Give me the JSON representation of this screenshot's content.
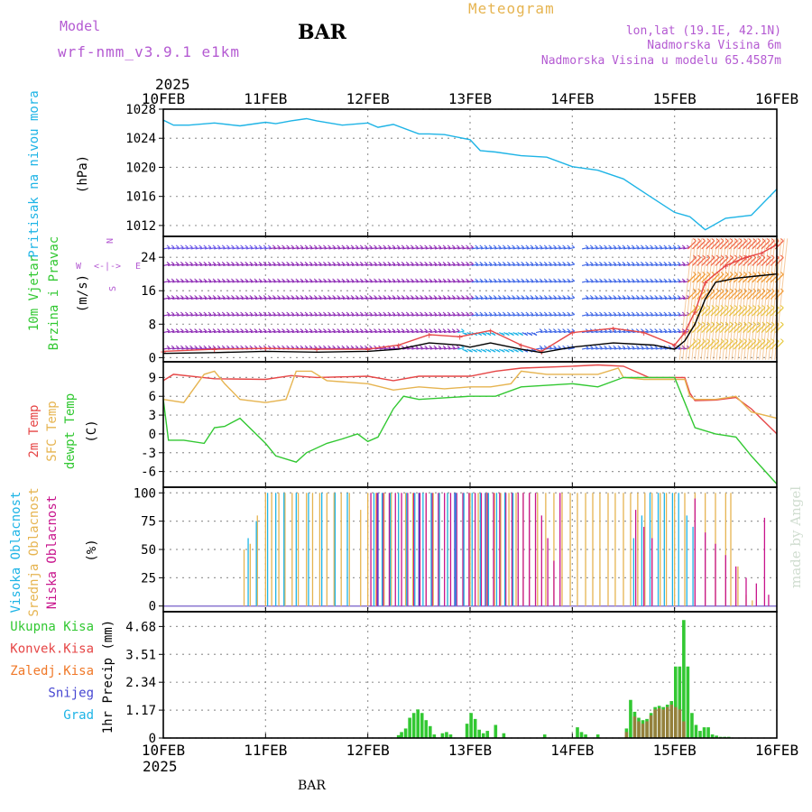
{
  "header": {
    "model_label": "Model",
    "model_name": "wrf-nmm_v3.9.1 e1km",
    "station": "BAR",
    "meteogram": "Meteogram",
    "location": "lon,lat (19.1E, 42.1N)",
    "elevation": "Nadmorska Visina 6m",
    "model_elevation": "Nadmorska Visina u modelu 65.4587m",
    "footer_station": "BAR",
    "credit": "made by Angel"
  },
  "colors": {
    "purple": "#b45ad2",
    "gold": "#e6b450",
    "cyan": "#1eb4e6",
    "green": "#32c832",
    "red": "#e64646",
    "orange": "#f07828",
    "blue": "#4646d2",
    "magenta": "#c8148c",
    "black": "#000000",
    "grid": "#999999"
  },
  "chart_data": [
    {
      "id": "pressure",
      "type": "line",
      "ylabel_lines": [
        "Pritisak na nivou mora",
        "(hPa)"
      ],
      "ylim": [
        1010.5,
        1028
      ],
      "yticks": [
        1012,
        1016,
        1020,
        1024,
        1028
      ],
      "x_top_year": "2025",
      "x_labels": [
        "10FEB",
        "11FEB",
        "12FEB",
        "13FEB",
        "14FEB",
        "15FEB",
        "16FEB"
      ],
      "series": [
        {
          "color": "cyan",
          "x": [
            0,
            0.1,
            0.25,
            0.5,
            0.75,
            1,
            1.1,
            1.25,
            1.4,
            1.5,
            1.75,
            2,
            2.1,
            2.25,
            2.5,
            2.6,
            2.75,
            3,
            3.1,
            3.25,
            3.5,
            3.75,
            4,
            4.25,
            4.5,
            4.75,
            5,
            5.15,
            5.3,
            5.5,
            5.75,
            6
          ],
          "values": [
            1026.5,
            1025.8,
            1025.8,
            1026.1,
            1025.7,
            1026.2,
            1026.0,
            1026.4,
            1026.7,
            1026.4,
            1025.8,
            1026.1,
            1025.5,
            1025.9,
            1024.6,
            1024.6,
            1024.5,
            1023.8,
            1022.3,
            1022.1,
            1021.6,
            1021.4,
            1020.1,
            1019.6,
            1018.4,
            1016.1,
            1013.8,
            1013.2,
            1011.4,
            1013.0,
            1013.4,
            1017.0
          ]
        }
      ]
    },
    {
      "id": "wind",
      "type": "line",
      "ylabel_lines": [
        "10m Vjetar",
        "Brzina i Pravac",
        "(m/s)"
      ],
      "compass": {
        "n": "N",
        "s": "S",
        "w": "W",
        "e": "E"
      },
      "ylim": [
        -1,
        29
      ],
      "yticks": [
        0,
        8,
        16,
        24
      ],
      "speed_levels": [
        2,
        6,
        10,
        14,
        18,
        22,
        26
      ],
      "series": [
        {
          "name": "speed",
          "color": "black",
          "x": [
            0,
            0.5,
            1,
            1.5,
            2,
            2.3,
            2.6,
            2.9,
            3,
            3.2,
            3.5,
            3.7,
            4,
            4.4,
            4.8,
            5,
            5.1,
            5.2,
            5.3,
            5.4,
            5.6,
            5.8,
            6
          ],
          "values": [
            1.0,
            1.2,
            1.5,
            1.3,
            1.5,
            2.0,
            3.5,
            3.0,
            2.5,
            3.5,
            2.0,
            1.2,
            2.5,
            3.5,
            3.0,
            2.0,
            4.0,
            8.0,
            14.0,
            18.0,
            19.0,
            19.5,
            20.0
          ]
        },
        {
          "name": "gust",
          "color": "red",
          "x": [
            0,
            0.5,
            1,
            1.5,
            2,
            2.3,
            2.6,
            2.9,
            3.2,
            3.5,
            3.7,
            4,
            4.4,
            4.7,
            5,
            5.1,
            5.2,
            5.3,
            5.5,
            5.7,
            5.85,
            6
          ],
          "values": [
            1.5,
            2.0,
            2.2,
            2.0,
            2.0,
            3.0,
            5.5,
            5.0,
            6.5,
            3.0,
            1.5,
            6.0,
            7.0,
            6.0,
            3.0,
            6.0,
            11.0,
            18.0,
            22.0,
            24.0,
            25.0,
            27.0
          ]
        }
      ]
    },
    {
      "id": "temperature",
      "type": "line",
      "ylabel_lines": [
        "2m Temp",
        "SFC Temp",
        "dewpt Temp",
        "(C)"
      ],
      "ylim": [
        -8.5,
        11.5
      ],
      "yticks": [
        -6,
        -3,
        0,
        3,
        6,
        9
      ],
      "series": [
        {
          "name": "2m Temp",
          "color": "red",
          "x": [
            0,
            0.1,
            0.5,
            1,
            1.25,
            1.5,
            2,
            2.25,
            2.5,
            3,
            3.25,
            3.5,
            4,
            4.25,
            4.5,
            4.75,
            5,
            5.1,
            5.15,
            5.2,
            5.4,
            5.6,
            5.75,
            6
          ],
          "values": [
            8.5,
            9.5,
            8.8,
            8.7,
            9.3,
            9.0,
            9.2,
            8.5,
            9.2,
            9.2,
            10.0,
            10.5,
            10.8,
            11.0,
            10.8,
            9.0,
            9.0,
            9.0,
            6.5,
            5.3,
            5.4,
            5.8,
            4.0,
            0.0
          ]
        },
        {
          "name": "SFC Temp",
          "color": "gold",
          "x": [
            0,
            0.2,
            0.4,
            0.5,
            0.6,
            0.75,
            1,
            1.2,
            1.3,
            1.45,
            1.6,
            2,
            2.25,
            2.5,
            2.75,
            3,
            3.2,
            3.4,
            3.5,
            3.75,
            4,
            4.25,
            4.45,
            4.5,
            4.7,
            5,
            5.1,
            5.15,
            5.2,
            5.4,
            5.6,
            5.75,
            6
          ],
          "values": [
            5.5,
            5.0,
            9.5,
            10.0,
            8.0,
            5.5,
            5.0,
            5.5,
            10.0,
            10.0,
            8.5,
            8.0,
            7.0,
            7.5,
            7.2,
            7.5,
            7.5,
            8.0,
            10.0,
            9.5,
            9.5,
            9.5,
            10.5,
            9.0,
            8.7,
            8.7,
            8.7,
            6.0,
            5.5,
            5.5,
            6.0,
            3.5,
            2.5
          ]
        },
        {
          "name": "dewpt Temp",
          "color": "green",
          "x": [
            0,
            0.05,
            0.2,
            0.4,
            0.5,
            0.6,
            0.75,
            1,
            1.1,
            1.3,
            1.4,
            1.6,
            1.75,
            1.9,
            2,
            2.1,
            2.25,
            2.35,
            2.5,
            3,
            3.25,
            3.5,
            4,
            4.25,
            4.5,
            4.75,
            5,
            5.1,
            5.2,
            5.4,
            5.6,
            5.75,
            6
          ],
          "values": [
            5.5,
            -1.0,
            -1.0,
            -1.5,
            1.0,
            1.2,
            2.5,
            -1.5,
            -3.5,
            -4.5,
            -3.0,
            -1.5,
            -0.8,
            0.0,
            -1.2,
            -0.5,
            4.0,
            6.0,
            5.5,
            6.0,
            6.0,
            7.5,
            8.0,
            7.5,
            9.0,
            9.0,
            9.0,
            5.0,
            1.0,
            0.0,
            -0.5,
            -3.5,
            -8.0
          ]
        }
      ]
    },
    {
      "id": "cloud",
      "type": "bar",
      "ylabel_lines": [
        "Visoka Oblacnost",
        "Srednja Oblacnost",
        "Niska Oblacnost",
        "(%)"
      ],
      "ylim": [
        -5,
        105
      ],
      "yticks": [
        0,
        25,
        50,
        75,
        100
      ],
      "series": [
        {
          "name": "Srednja Oblacnost",
          "color": "gold",
          "x": [
            0.79,
            0.85,
            0.92,
            1.0,
            1.06,
            1.13,
            1.19,
            1.26,
            1.32,
            1.4,
            1.46,
            1.53,
            1.6,
            1.67,
            1.74,
            1.82,
            1.93,
            2.0,
            2.08,
            2.16,
            2.23,
            2.3,
            2.37,
            2.44,
            2.5,
            2.57,
            2.64,
            2.7,
            2.78,
            2.86,
            2.93,
            3.0,
            3.08,
            3.16,
            3.24,
            3.3,
            3.38,
            3.45,
            3.52,
            3.58,
            3.66,
            3.74,
            3.82,
            3.9,
            3.98,
            4.05,
            4.13,
            4.2,
            4.27,
            4.35,
            4.42,
            4.5,
            4.57,
            4.64,
            4.71,
            4.78,
            4.86,
            4.92,
            5.0,
            5.1,
            5.2,
            5.3,
            5.4,
            5.5,
            5.55,
            5.62,
            5.7,
            5.76
          ],
          "values": [
            50,
            55,
            80,
            100,
            100,
            100,
            100,
            100,
            100,
            100,
            100,
            100,
            100,
            100,
            100,
            100,
            85,
            100,
            100,
            100,
            100,
            100,
            100,
            100,
            100,
            100,
            100,
            100,
            100,
            100,
            100,
            100,
            100,
            100,
            100,
            100,
            100,
            100,
            100,
            100,
            100,
            100,
            100,
            100,
            100,
            100,
            100,
            100,
            100,
            100,
            100,
            100,
            100,
            100,
            100,
            100,
            100,
            100,
            100,
            100,
            100,
            100,
            100,
            100,
            100,
            35,
            10,
            5
          ]
        },
        {
          "name": "Niska Oblacnost",
          "color": "magenta",
          "x": [
            2.03,
            2.09,
            2.15,
            2.21,
            2.27,
            2.33,
            2.39,
            2.45,
            2.51,
            2.57,
            2.63,
            2.69,
            2.75,
            2.81,
            2.87,
            2.93,
            2.99,
            3.05,
            3.11,
            3.17,
            3.23,
            3.29,
            3.35,
            3.41,
            3.47,
            3.52,
            3.58,
            3.64,
            3.7,
            3.76,
            3.82,
            3.88,
            4.62,
            4.7,
            4.78,
            5.2,
            5.3,
            5.4,
            5.5,
            5.6,
            5.7,
            5.8,
            5.88,
            5.92
          ],
          "values": [
            100,
            100,
            100,
            100,
            100,
            100,
            100,
            100,
            100,
            100,
            100,
            100,
            100,
            100,
            100,
            100,
            100,
            100,
            100,
            100,
            100,
            100,
            100,
            100,
            100,
            100,
            100,
            100,
            80,
            60,
            40,
            100,
            85,
            70,
            60,
            95,
            65,
            55,
            45,
            35,
            25,
            20,
            78,
            10
          ]
        },
        {
          "name": "Visoka Oblacnost",
          "color": "cyan",
          "x": [
            0.83,
            0.91,
            1.02,
            1.1,
            1.18,
            1.3,
            1.42,
            1.55,
            1.68,
            1.8,
            2.06,
            2.14,
            2.22,
            2.3,
            2.38,
            2.46,
            2.54,
            2.62,
            2.7,
            2.78,
            2.86,
            2.94,
            3.02,
            3.1,
            3.18,
            3.26,
            3.34,
            3.42,
            4.6,
            4.68,
            4.76,
            4.84,
            4.9,
            4.98,
            5.04,
            5.12,
            5.18
          ],
          "values": [
            60,
            75,
            100,
            100,
            100,
            100,
            100,
            100,
            100,
            100,
            100,
            100,
            100,
            100,
            100,
            100,
            100,
            100,
            100,
            100,
            100,
            100,
            100,
            100,
            100,
            100,
            100,
            100,
            60,
            80,
            100,
            100,
            100,
            100,
            100,
            80,
            70
          ]
        },
        {
          "name": "Low-level",
          "color": "blue",
          "x": [
            2.1,
            2.5,
            2.85,
            3.15
          ],
          "values": [
            100,
            100,
            100,
            100
          ]
        }
      ]
    },
    {
      "id": "precip",
      "type": "bar",
      "ylabel_lines": [
        "1hr Precip (mm)"
      ],
      "legend_labels": [
        "Ukupna Kisa",
        "Konvek.Kisa",
        "Zaledj.Kisa",
        "Snijeg",
        "Grad"
      ],
      "legend_colors": [
        "green",
        "red",
        "orange",
        "blue",
        "cyan"
      ],
      "ylim": [
        0,
        5.3
      ],
      "yticks": [
        0,
        1.17,
        2.34,
        3.51,
        4.68
      ],
      "ytick_labels": [
        "0",
        "1.17",
        "2.34",
        "3.51",
        "4.68"
      ],
      "x_bottom_year": "2025",
      "series": [
        {
          "name": "Ukupna Kisa",
          "color": "green",
          "x": [
            2.3,
            2.33,
            2.37,
            2.41,
            2.45,
            2.49,
            2.53,
            2.57,
            2.61,
            2.65,
            2.73,
            2.77,
            2.81,
            2.97,
            3.01,
            3.05,
            3.09,
            3.13,
            3.17,
            3.25,
            3.33,
            3.73,
            4.05,
            4.09,
            4.13,
            4.25,
            4.53,
            4.57,
            4.61,
            4.65,
            4.69,
            4.73,
            4.77,
            4.81,
            4.85,
            4.89,
            4.93,
            4.97,
            5.01,
            5.05,
            5.09,
            5.13,
            5.17,
            5.21,
            5.25,
            5.29,
            5.33,
            5.37,
            5.41,
            5.45,
            5.49,
            5.53
          ],
          "values": [
            0.12,
            0.25,
            0.4,
            0.85,
            1.05,
            1.2,
            1.05,
            0.75,
            0.5,
            0.15,
            0.2,
            0.25,
            0.15,
            0.6,
            1.05,
            0.8,
            0.35,
            0.2,
            0.3,
            0.55,
            0.2,
            0.15,
            0.45,
            0.25,
            0.15,
            0.15,
            0.4,
            1.6,
            1.1,
            0.85,
            0.75,
            0.8,
            1.05,
            1.3,
            1.35,
            1.3,
            1.4,
            1.55,
            3.0,
            3.0,
            4.95,
            3.0,
            1.05,
            0.55,
            0.3,
            0.45,
            0.45,
            0.15,
            0.1,
            0.05,
            0.05,
            0.05
          ]
        },
        {
          "name": "Konvek.Kisa",
          "color": "red",
          "x": [
            4.53,
            4.61,
            4.65,
            4.69,
            4.73,
            4.77,
            4.81,
            4.85,
            4.89,
            4.93,
            4.97,
            5.01,
            5.05,
            5.09
          ],
          "values": [
            0.25,
            0.9,
            0.7,
            0.6,
            0.7,
            0.95,
            1.2,
            1.25,
            1.2,
            1.3,
            1.4,
            1.3,
            1.2,
            0.7
          ]
        }
      ]
    }
  ]
}
